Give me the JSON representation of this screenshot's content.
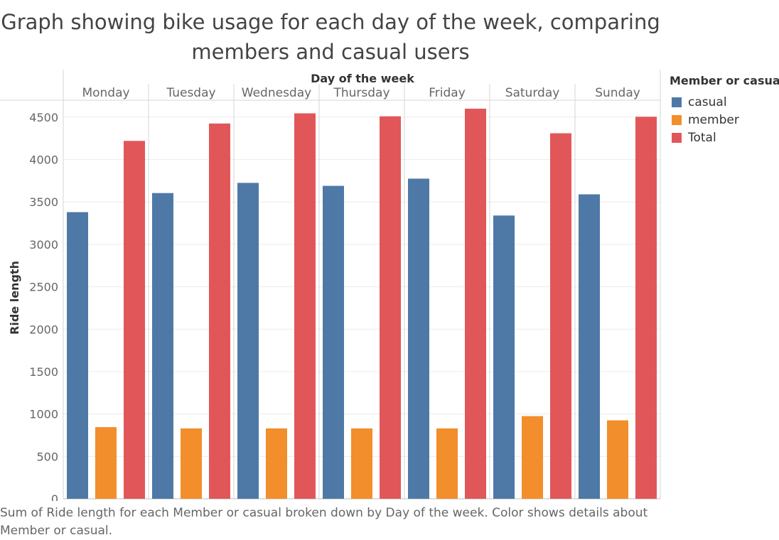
{
  "chart_data": {
    "type": "bar",
    "title": "Graph showing bike usage for each day of the week, comparing members and casual users",
    "column_header": "Day of the week",
    "ylabel": "Ride length",
    "ylim": [
      0,
      4700
    ],
    "yticks": [
      0,
      500,
      1000,
      1500,
      2000,
      2500,
      3000,
      3500,
      4000,
      4500
    ],
    "grid": true,
    "legend_position": "right",
    "legend_title": "Member or casual",
    "categories": [
      "Monday",
      "Tuesday",
      "Wednesday",
      "Thursday",
      "Friday",
      "Saturday",
      "Sunday"
    ],
    "series": [
      {
        "name": "casual",
        "color": "#4e79a7",
        "values": [
          3380,
          3605,
          3725,
          3690,
          3775,
          3340,
          3590
        ]
      },
      {
        "name": "member",
        "color": "#f28e2b",
        "values": [
          845,
          830,
          830,
          830,
          830,
          975,
          925
        ]
      },
      {
        "name": "Total",
        "color": "#e15759",
        "values": [
          4220,
          4425,
          4545,
          4510,
          4600,
          4310,
          4505
        ]
      }
    ],
    "caption": "Sum of Ride length for each Member or casual broken down by Day of the week.  Color shows details about Member or casual."
  }
}
